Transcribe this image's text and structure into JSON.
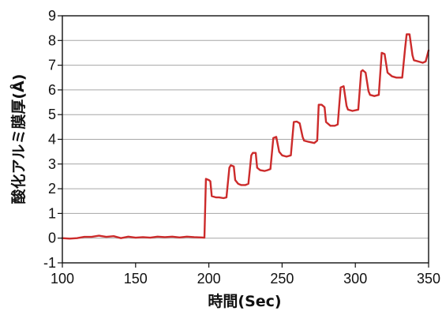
{
  "chart_data": {
    "type": "line",
    "title": "",
    "xlabel": "時間(Sec)",
    "ylabel": "酸化アルミ膜厚(Å)",
    "xlim": [
      100,
      350
    ],
    "ylim": [
      -1,
      9
    ],
    "xticks": [
      "100",
      "150",
      "200",
      "250",
      "300",
      "350"
    ],
    "yticks": [
      "-1",
      "0",
      "1",
      "2",
      "3",
      "4",
      "5",
      "6",
      "7",
      "8",
      "9"
    ],
    "grid": "horizontal",
    "legend": "none",
    "series": [
      {
        "color": "#cc2b2b",
        "x": [
          100,
          105,
          110,
          115,
          120,
          125,
          130,
          135,
          140,
          145,
          150,
          155,
          160,
          165,
          170,
          175,
          180,
          185,
          190,
          195,
          197,
          198,
          200,
          201,
          202,
          205,
          207,
          210,
          212,
          214,
          215,
          217,
          218,
          220,
          222,
          225,
          227,
          229,
          230,
          232,
          233,
          235,
          238,
          240,
          242,
          244,
          246,
          248,
          250,
          253,
          256,
          258,
          260,
          262,
          264,
          265,
          268,
          272,
          274,
          275,
          277,
          279,
          280,
          283,
          286,
          288,
          290,
          292,
          294,
          295,
          298,
          302,
          304,
          305,
          307,
          309,
          310,
          313,
          316,
          318,
          320,
          322,
          324,
          325,
          328,
          332,
          334,
          335,
          337,
          339,
          340,
          343,
          346,
          348,
          350
        ],
        "y": [
          0.0,
          -0.02,
          0.0,
          0.05,
          0.05,
          0.1,
          0.05,
          0.08,
          0.0,
          0.06,
          0.02,
          0.04,
          0.02,
          0.06,
          0.04,
          0.06,
          0.03,
          0.06,
          0.04,
          0.03,
          0.02,
          2.4,
          2.35,
          2.3,
          1.7,
          1.65,
          1.65,
          1.62,
          1.65,
          2.85,
          2.95,
          2.9,
          2.35,
          2.2,
          2.15,
          2.15,
          2.2,
          3.35,
          3.45,
          3.45,
          2.85,
          2.75,
          2.72,
          2.75,
          2.8,
          4.05,
          4.1,
          3.5,
          3.35,
          3.3,
          3.35,
          4.7,
          4.72,
          4.65,
          4.1,
          3.95,
          3.9,
          3.85,
          3.95,
          5.4,
          5.4,
          5.3,
          4.7,
          4.55,
          4.55,
          4.6,
          6.1,
          6.15,
          5.35,
          5.2,
          5.15,
          5.2,
          6.75,
          6.8,
          6.7,
          5.95,
          5.8,
          5.75,
          5.8,
          7.5,
          7.45,
          6.7,
          6.6,
          6.55,
          6.5,
          6.5,
          7.7,
          8.25,
          8.25,
          7.4,
          7.2,
          7.15,
          7.1,
          7.15,
          7.6
        ]
      }
    ]
  }
}
